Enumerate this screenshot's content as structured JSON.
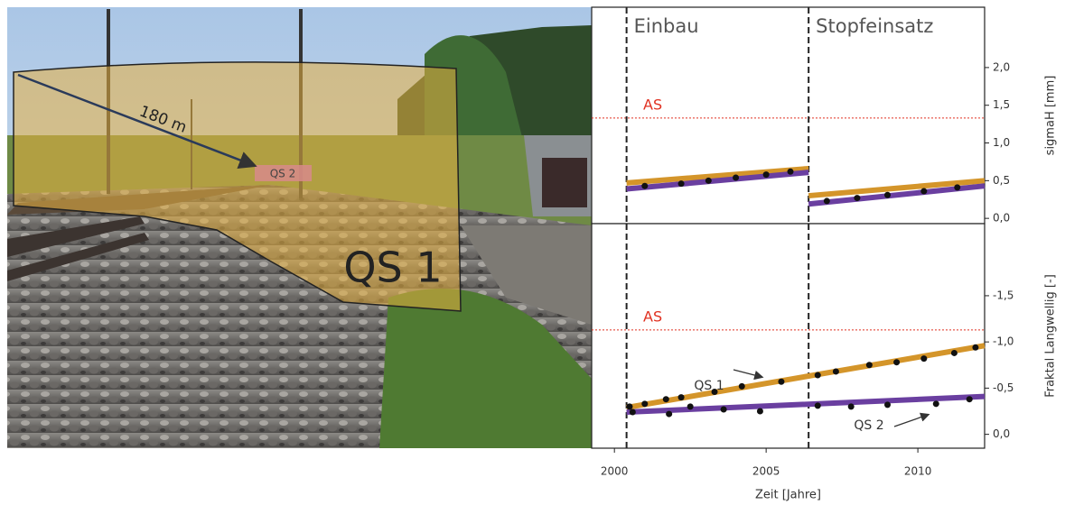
{
  "photo": {
    "distance_label": "180 m",
    "section_far": "QS 2",
    "section_near": "QS 1"
  },
  "chart_data": [
    {
      "type": "line",
      "ylabel": "sigmaH [mm]",
      "xlim": [
        1999.25,
        2012.2
      ],
      "ylim": [
        -0.07,
        2.8
      ],
      "yticks": [
        {
          "value": 0,
          "label": "0,0"
        },
        {
          "value": 0.5,
          "label": "0,5"
        },
        {
          "value": 1,
          "label": "1,0"
        },
        {
          "value": 1.5,
          "label": "1,5"
        },
        {
          "value": 2,
          "label": "2,0"
        }
      ],
      "vlines": [
        2000.4,
        2006.4
      ],
      "vline_labels": [
        "Einbau",
        "Stopfeinsatz"
      ],
      "threshold": {
        "value": 1.33,
        "label": "AS",
        "color": "#e03020"
      },
      "series": [
        {
          "color": "#d4952a",
          "x": [
            2000.4,
            2006.4,
            2006.4,
            2006.4,
            2012.2
          ],
          "values": [
            0.47,
            0.66,
            null,
            0.3,
            0.5
          ]
        },
        {
          "color": "#6a3fa0",
          "x": [
            2000.4,
            2006.4,
            2006.4,
            2006.4,
            2012.2
          ],
          "values": [
            0.39,
            0.61,
            null,
            0.19,
            0.43
          ]
        }
      ],
      "points": {
        "color": "#111111",
        "x": [
          2001.0,
          2002.2,
          2003.1,
          2004.0,
          2005.0,
          2005.8,
          2007.0,
          2008.0,
          2009.0,
          2010.2,
          2011.3
        ],
        "values": [
          0.43,
          0.46,
          0.5,
          0.54,
          0.58,
          0.62,
          0.23,
          0.27,
          0.31,
          0.36,
          0.41
        ]
      }
    },
    {
      "type": "line",
      "ylabel": "Fraktal Langwellig [-]",
      "xlabel": "Zeit [Jahre]",
      "xlim": [
        1999.25,
        2012.2
      ],
      "xticks": [
        2000,
        2005,
        2010
      ],
      "ylim": [
        0.15,
        -2.28
      ],
      "yticks": [
        {
          "value": 0,
          "label": "0,0"
        },
        {
          "value": -0.5,
          "label": "-0,5"
        },
        {
          "value": -1,
          "label": "-1,0"
        },
        {
          "value": -1.5,
          "label": "-1,5"
        }
      ],
      "vlines": [
        2000.4,
        2006.4
      ],
      "threshold": {
        "value": -1.13,
        "label": "AS",
        "color": "#e03020"
      },
      "series": [
        {
          "name": "QS 1",
          "color": "#d4952a",
          "x": [
            2000.4,
            2012.2
          ],
          "values": [
            -0.29,
            -0.96
          ]
        },
        {
          "name": "QS 2",
          "color": "#6a3fa0",
          "x": [
            2000.4,
            2012.2
          ],
          "values": [
            -0.24,
            -0.41
          ]
        }
      ],
      "points": {
        "color": "#111111",
        "x": [
          2000.5,
          2001.0,
          2001.7,
          2002.2,
          2003.3,
          2004.2,
          2005.5,
          2006.7,
          2007.3,
          2008.4,
          2009.3,
          2010.2,
          2011.2,
          2011.9,
          2000.6,
          2001.8,
          2002.5,
          2003.6,
          2004.8,
          2006.7,
          2007.8,
          2009.0,
          2010.6,
          2011.7
        ],
        "values": [
          -0.3,
          -0.33,
          -0.38,
          -0.4,
          -0.46,
          -0.52,
          -0.57,
          -0.64,
          -0.68,
          -0.75,
          -0.78,
          -0.82,
          -0.88,
          -0.94,
          -0.24,
          -0.22,
          -0.3,
          -0.27,
          -0.25,
          -0.31,
          -0.3,
          -0.32,
          -0.33,
          -0.38
        ]
      }
    }
  ]
}
